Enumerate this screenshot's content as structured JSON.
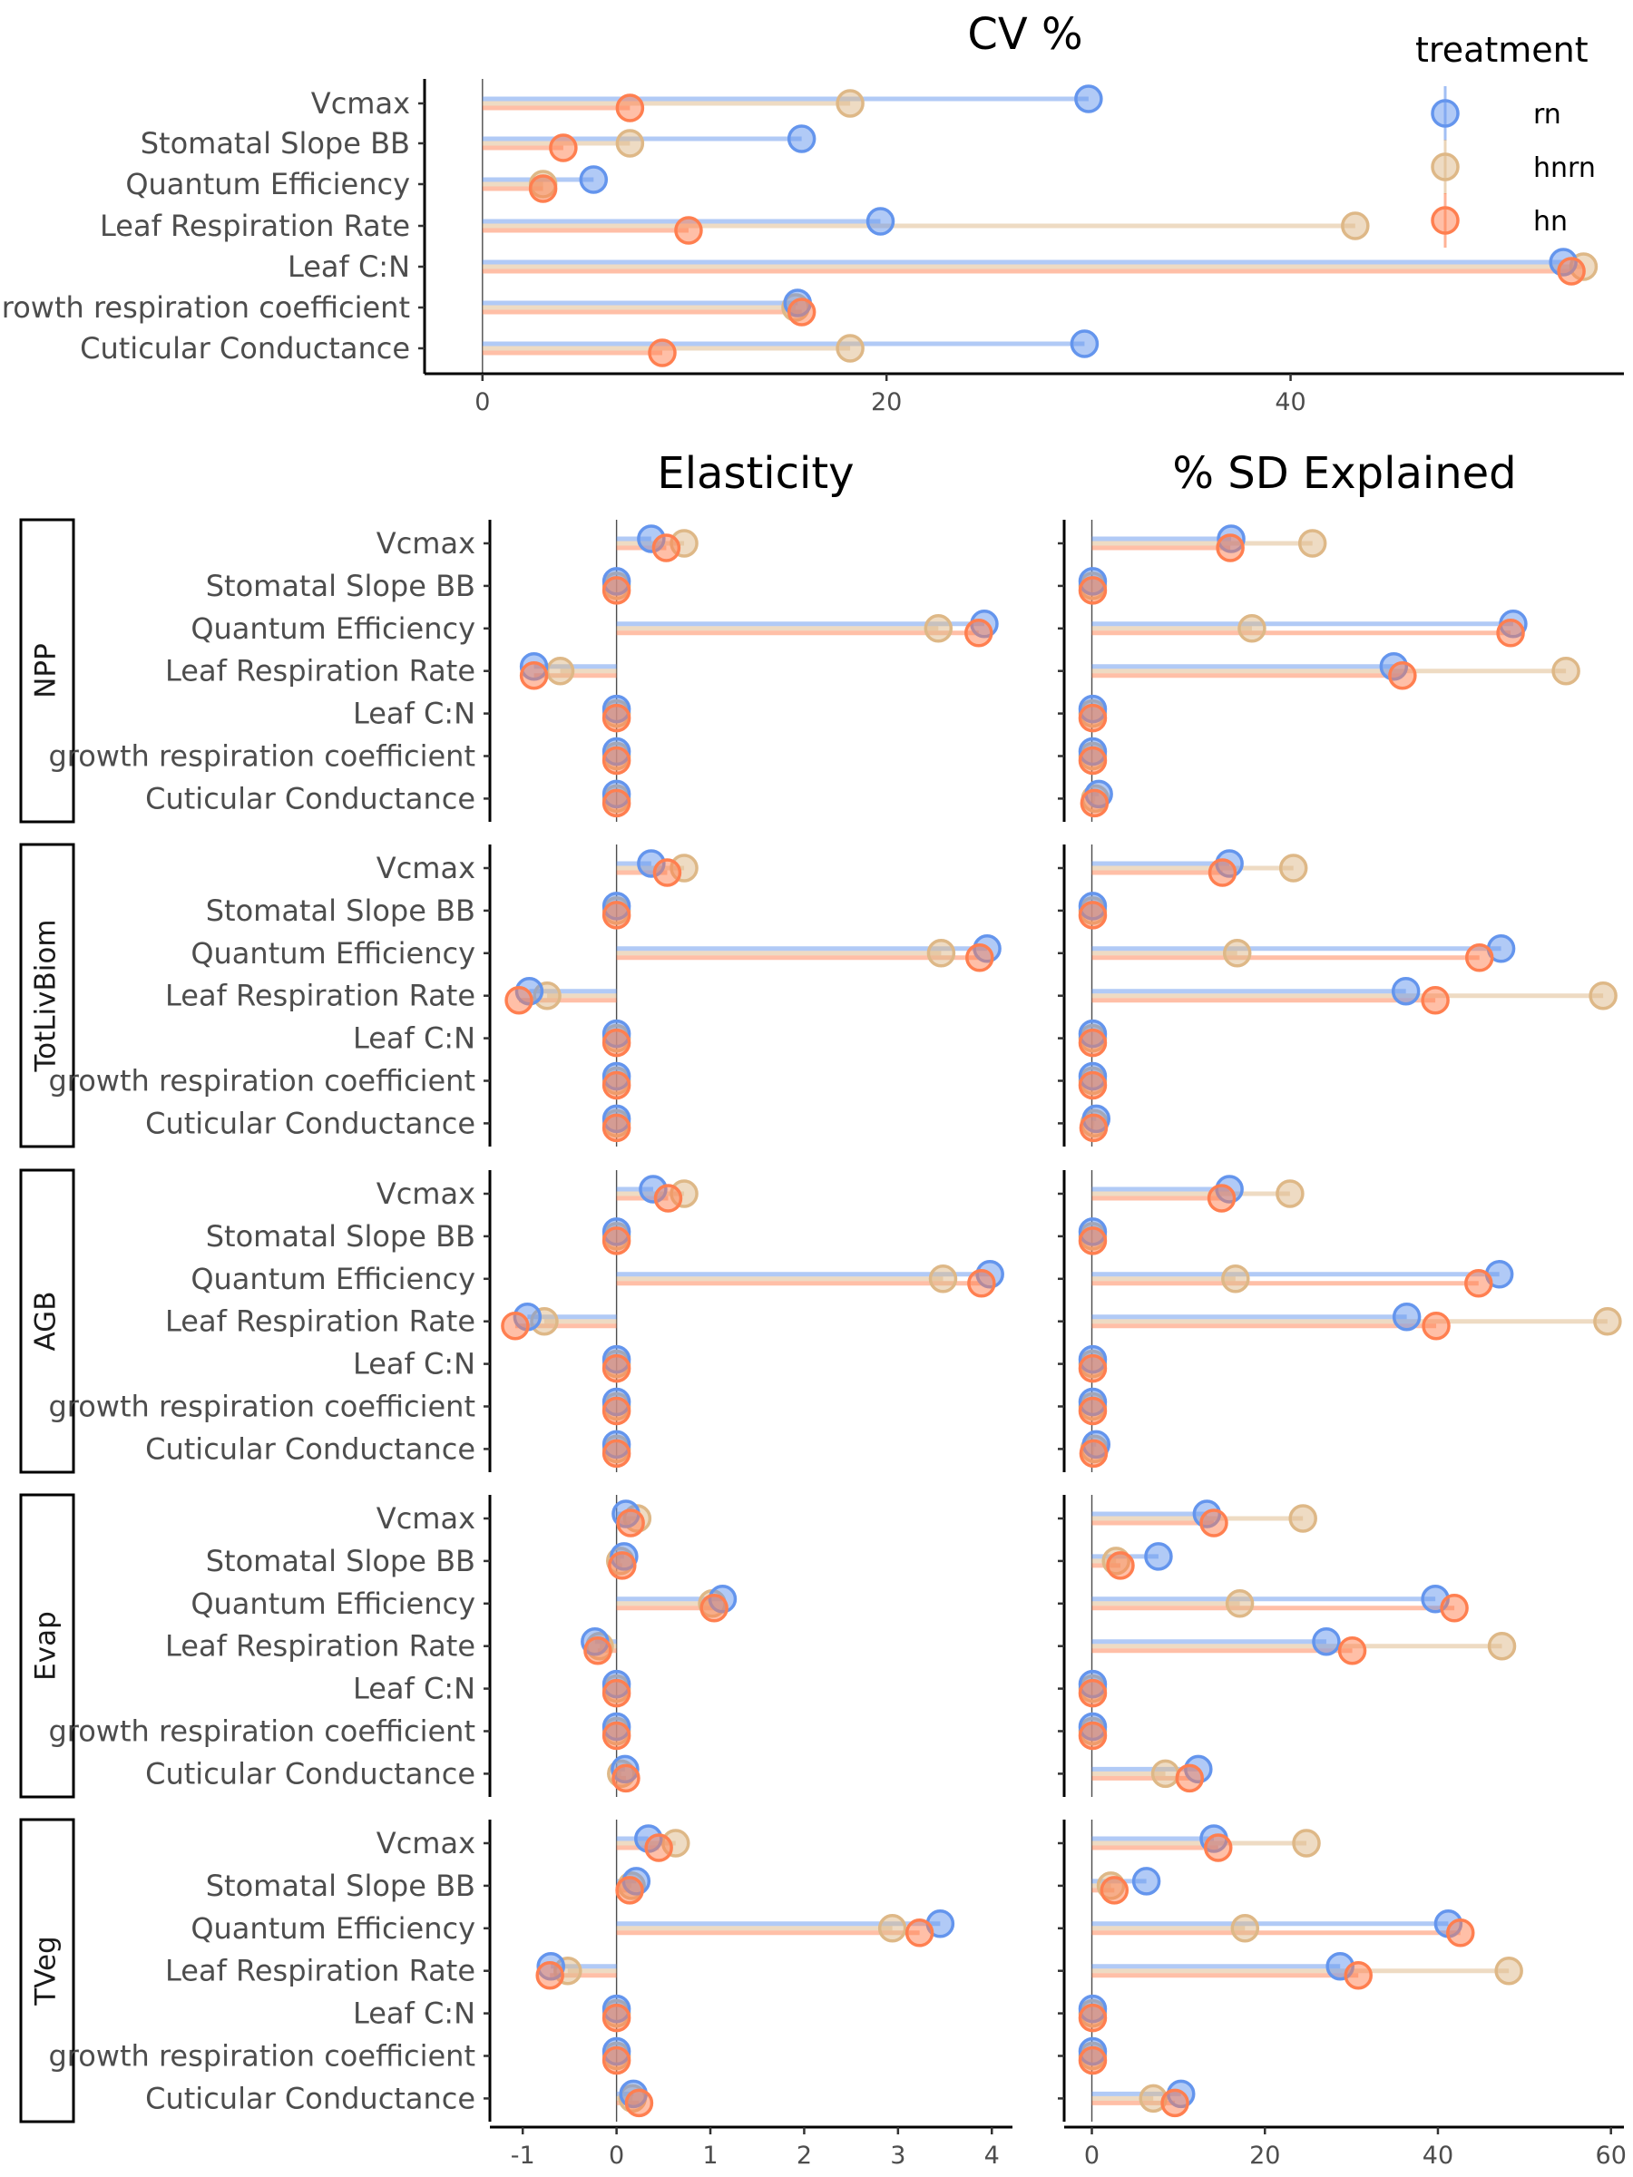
{
  "colors": {
    "rn": "#6495ED",
    "hnrn": "#DEB887",
    "hn": "#FF7F50"
  },
  "chart_data": {
    "type": "lollipop",
    "legend": {
      "title": "treatment",
      "position": "top-right",
      "entries": [
        "rn",
        "hnrn",
        "hn"
      ]
    },
    "parameters": [
      "Vcmax",
      "Stomatal Slope BB",
      "Quantum Efficiency",
      "Leaf Respiration Rate",
      "Leaf C:N",
      "growth respiration coefficient",
      "Cuticular Conductance"
    ],
    "cv": {
      "title": "CV %",
      "xlim": [
        -3,
        56.5
      ],
      "ticks": [
        0,
        20,
        40
      ],
      "series": [
        {
          "name": "rn",
          "values": [
            30,
            15.8,
            5.5,
            19.7,
            53.5,
            15.6,
            29.8
          ]
        },
        {
          "name": "hnrn",
          "values": [
            18.2,
            7.3,
            3,
            43.2,
            54.5,
            15.5,
            18.2
          ]
        },
        {
          "name": "hn",
          "values": [
            7.3,
            4,
            3,
            10.2,
            53.9,
            15.8,
            8.9
          ]
        }
      ]
    },
    "panel_titles": {
      "elasticity": "Elasticity",
      "sd": "% SD Explained"
    },
    "elasticity_axis": {
      "xlim": [
        -1.35,
        4.22
      ],
      "ticks": [
        -1,
        0,
        1,
        2,
        3,
        4
      ]
    },
    "sd_axis": {
      "xlim": [
        -3.2,
        61.5
      ],
      "ticks": [
        0,
        20,
        40,
        60
      ]
    },
    "variables": [
      {
        "name": "NPP",
        "elasticity": {
          "rn": [
            0.37,
            0,
            3.92,
            -0.88,
            0,
            0,
            0
          ],
          "hnrn": [
            0.72,
            0,
            3.43,
            -0.6,
            0,
            0,
            0
          ],
          "hn": [
            0.53,
            0,
            3.86,
            -0.88,
            0,
            0,
            0
          ]
        },
        "sd_explained": {
          "rn": [
            16.1,
            0.1,
            48.7,
            34.9,
            0.1,
            0.1,
            0.8
          ],
          "hnrn": [
            25.5,
            0.1,
            18.5,
            54.8,
            0.1,
            0.1,
            0.4
          ],
          "hn": [
            16,
            0.1,
            48.4,
            35.9,
            0.1,
            0.1,
            0.3
          ]
        }
      },
      {
        "name": "TotLivBiom",
        "elasticity": {
          "rn": [
            0.37,
            0,
            3.95,
            -0.93,
            0,
            0,
            0
          ],
          "hnrn": [
            0.72,
            0,
            3.46,
            -0.74,
            0,
            0,
            0
          ],
          "hn": [
            0.54,
            0,
            3.87,
            -1.04,
            0,
            0,
            0
          ]
        },
        "sd_explained": {
          "rn": [
            15.9,
            0.1,
            47.3,
            36.3,
            0.1,
            0.1,
            0.5
          ],
          "hnrn": [
            23.3,
            0.1,
            16.8,
            59.1,
            0.1,
            0.1,
            0.3
          ],
          "hn": [
            15.1,
            0.1,
            44.8,
            39.7,
            0.1,
            0.1,
            0.2
          ]
        }
      },
      {
        "name": "AGB",
        "elasticity": {
          "rn": [
            0.39,
            0,
            3.98,
            -0.95,
            0,
            0,
            0
          ],
          "hnrn": [
            0.72,
            0,
            3.48,
            -0.77,
            0,
            0,
            0
          ],
          "hn": [
            0.55,
            0,
            3.89,
            -1.08,
            0,
            0,
            0
          ]
        },
        "sd_explained": {
          "rn": [
            15.9,
            0.1,
            47.1,
            36.4,
            0.1,
            0.1,
            0.5
          ],
          "hnrn": [
            22.9,
            0.1,
            16.6,
            59.6,
            0.1,
            0.1,
            0.3
          ],
          "hn": [
            15,
            0.1,
            44.7,
            39.8,
            0.1,
            0.1,
            0.2
          ]
        }
      },
      {
        "name": "Evap",
        "elasticity": {
          "rn": [
            0.1,
            0.08,
            1.13,
            -0.23,
            0,
            0,
            0.09
          ],
          "hnrn": [
            0.22,
            0.04,
            1.02,
            -0.18,
            0,
            0,
            0.05
          ],
          "hn": [
            0.15,
            0.06,
            1.04,
            -0.2,
            0,
            0,
            0.1
          ]
        },
        "sd_explained": {
          "rn": [
            13.3,
            7.7,
            39.7,
            27.1,
            0.1,
            0.1,
            12.3
          ],
          "hnrn": [
            24.4,
            2.8,
            17.1,
            47.4,
            0.1,
            0.1,
            8.5
          ],
          "hn": [
            14.1,
            3.3,
            41.9,
            30.1,
            0.1,
            0.1,
            11.3
          ]
        }
      },
      {
        "name": "TVeg",
        "elasticity": {
          "rn": [
            0.34,
            0.21,
            3.45,
            -0.7,
            0,
            0,
            0.18
          ],
          "hnrn": [
            0.63,
            0.16,
            2.94,
            -0.52,
            0,
            0,
            0.17
          ],
          "hn": [
            0.45,
            0.14,
            3.23,
            -0.71,
            0,
            0,
            0.24
          ]
        },
        "sd_explained": {
          "rn": [
            14.1,
            6.3,
            41.2,
            28.7,
            0.1,
            0.1,
            10.3
          ],
          "hnrn": [
            24.8,
            2.2,
            17.7,
            48.2,
            0.1,
            0.1,
            7.1
          ],
          "hn": [
            14.6,
            2.6,
            42.6,
            30.8,
            0.1,
            0.1,
            9.6
          ]
        }
      }
    ]
  }
}
